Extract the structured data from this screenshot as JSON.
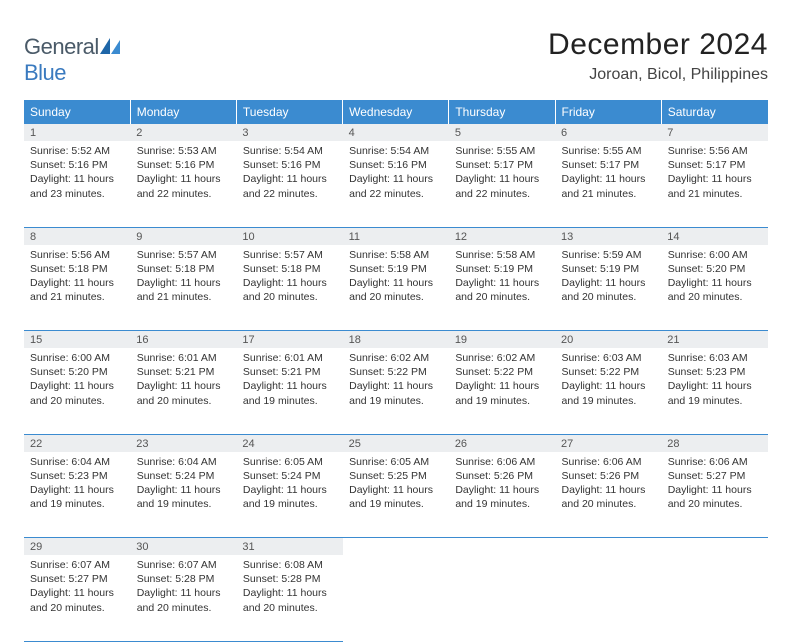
{
  "brand": {
    "word1": "General",
    "word2": "Blue"
  },
  "header": {
    "title": "December 2024",
    "location": "Joroan, Bicol, Philippines"
  },
  "theme": {
    "header_bg": "#3b8bd0",
    "header_fg": "#ffffff",
    "daynum_bg": "#eceef0",
    "rule": "#3b8bd0"
  },
  "weekdays": [
    "Sunday",
    "Monday",
    "Tuesday",
    "Wednesday",
    "Thursday",
    "Friday",
    "Saturday"
  ],
  "weeks": [
    [
      {
        "n": "1",
        "sr": "Sunrise: 5:52 AM",
        "ss": "Sunset: 5:16 PM",
        "d1": "Daylight: 11 hours",
        "d2": "and 23 minutes."
      },
      {
        "n": "2",
        "sr": "Sunrise: 5:53 AM",
        "ss": "Sunset: 5:16 PM",
        "d1": "Daylight: 11 hours",
        "d2": "and 22 minutes."
      },
      {
        "n": "3",
        "sr": "Sunrise: 5:54 AM",
        "ss": "Sunset: 5:16 PM",
        "d1": "Daylight: 11 hours",
        "d2": "and 22 minutes."
      },
      {
        "n": "4",
        "sr": "Sunrise: 5:54 AM",
        "ss": "Sunset: 5:16 PM",
        "d1": "Daylight: 11 hours",
        "d2": "and 22 minutes."
      },
      {
        "n": "5",
        "sr": "Sunrise: 5:55 AM",
        "ss": "Sunset: 5:17 PM",
        "d1": "Daylight: 11 hours",
        "d2": "and 22 minutes."
      },
      {
        "n": "6",
        "sr": "Sunrise: 5:55 AM",
        "ss": "Sunset: 5:17 PM",
        "d1": "Daylight: 11 hours",
        "d2": "and 21 minutes."
      },
      {
        "n": "7",
        "sr": "Sunrise: 5:56 AM",
        "ss": "Sunset: 5:17 PM",
        "d1": "Daylight: 11 hours",
        "d2": "and 21 minutes."
      }
    ],
    [
      {
        "n": "8",
        "sr": "Sunrise: 5:56 AM",
        "ss": "Sunset: 5:18 PM",
        "d1": "Daylight: 11 hours",
        "d2": "and 21 minutes."
      },
      {
        "n": "9",
        "sr": "Sunrise: 5:57 AM",
        "ss": "Sunset: 5:18 PM",
        "d1": "Daylight: 11 hours",
        "d2": "and 21 minutes."
      },
      {
        "n": "10",
        "sr": "Sunrise: 5:57 AM",
        "ss": "Sunset: 5:18 PM",
        "d1": "Daylight: 11 hours",
        "d2": "and 20 minutes."
      },
      {
        "n": "11",
        "sr": "Sunrise: 5:58 AM",
        "ss": "Sunset: 5:19 PM",
        "d1": "Daylight: 11 hours",
        "d2": "and 20 minutes."
      },
      {
        "n": "12",
        "sr": "Sunrise: 5:58 AM",
        "ss": "Sunset: 5:19 PM",
        "d1": "Daylight: 11 hours",
        "d2": "and 20 minutes."
      },
      {
        "n": "13",
        "sr": "Sunrise: 5:59 AM",
        "ss": "Sunset: 5:19 PM",
        "d1": "Daylight: 11 hours",
        "d2": "and 20 minutes."
      },
      {
        "n": "14",
        "sr": "Sunrise: 6:00 AM",
        "ss": "Sunset: 5:20 PM",
        "d1": "Daylight: 11 hours",
        "d2": "and 20 minutes."
      }
    ],
    [
      {
        "n": "15",
        "sr": "Sunrise: 6:00 AM",
        "ss": "Sunset: 5:20 PM",
        "d1": "Daylight: 11 hours",
        "d2": "and 20 minutes."
      },
      {
        "n": "16",
        "sr": "Sunrise: 6:01 AM",
        "ss": "Sunset: 5:21 PM",
        "d1": "Daylight: 11 hours",
        "d2": "and 20 minutes."
      },
      {
        "n": "17",
        "sr": "Sunrise: 6:01 AM",
        "ss": "Sunset: 5:21 PM",
        "d1": "Daylight: 11 hours",
        "d2": "and 19 minutes."
      },
      {
        "n": "18",
        "sr": "Sunrise: 6:02 AM",
        "ss": "Sunset: 5:22 PM",
        "d1": "Daylight: 11 hours",
        "d2": "and 19 minutes."
      },
      {
        "n": "19",
        "sr": "Sunrise: 6:02 AM",
        "ss": "Sunset: 5:22 PM",
        "d1": "Daylight: 11 hours",
        "d2": "and 19 minutes."
      },
      {
        "n": "20",
        "sr": "Sunrise: 6:03 AM",
        "ss": "Sunset: 5:22 PM",
        "d1": "Daylight: 11 hours",
        "d2": "and 19 minutes."
      },
      {
        "n": "21",
        "sr": "Sunrise: 6:03 AM",
        "ss": "Sunset: 5:23 PM",
        "d1": "Daylight: 11 hours",
        "d2": "and 19 minutes."
      }
    ],
    [
      {
        "n": "22",
        "sr": "Sunrise: 6:04 AM",
        "ss": "Sunset: 5:23 PM",
        "d1": "Daylight: 11 hours",
        "d2": "and 19 minutes."
      },
      {
        "n": "23",
        "sr": "Sunrise: 6:04 AM",
        "ss": "Sunset: 5:24 PM",
        "d1": "Daylight: 11 hours",
        "d2": "and 19 minutes."
      },
      {
        "n": "24",
        "sr": "Sunrise: 6:05 AM",
        "ss": "Sunset: 5:24 PM",
        "d1": "Daylight: 11 hours",
        "d2": "and 19 minutes."
      },
      {
        "n": "25",
        "sr": "Sunrise: 6:05 AM",
        "ss": "Sunset: 5:25 PM",
        "d1": "Daylight: 11 hours",
        "d2": "and 19 minutes."
      },
      {
        "n": "26",
        "sr": "Sunrise: 6:06 AM",
        "ss": "Sunset: 5:26 PM",
        "d1": "Daylight: 11 hours",
        "d2": "and 19 minutes."
      },
      {
        "n": "27",
        "sr": "Sunrise: 6:06 AM",
        "ss": "Sunset: 5:26 PM",
        "d1": "Daylight: 11 hours",
        "d2": "and 20 minutes."
      },
      {
        "n": "28",
        "sr": "Sunrise: 6:06 AM",
        "ss": "Sunset: 5:27 PM",
        "d1": "Daylight: 11 hours",
        "d2": "and 20 minutes."
      }
    ],
    [
      {
        "n": "29",
        "sr": "Sunrise: 6:07 AM",
        "ss": "Sunset: 5:27 PM",
        "d1": "Daylight: 11 hours",
        "d2": "and 20 minutes."
      },
      {
        "n": "30",
        "sr": "Sunrise: 6:07 AM",
        "ss": "Sunset: 5:28 PM",
        "d1": "Daylight: 11 hours",
        "d2": "and 20 minutes."
      },
      {
        "n": "31",
        "sr": "Sunrise: 6:08 AM",
        "ss": "Sunset: 5:28 PM",
        "d1": "Daylight: 11 hours",
        "d2": "and 20 minutes."
      },
      null,
      null,
      null,
      null
    ]
  ]
}
